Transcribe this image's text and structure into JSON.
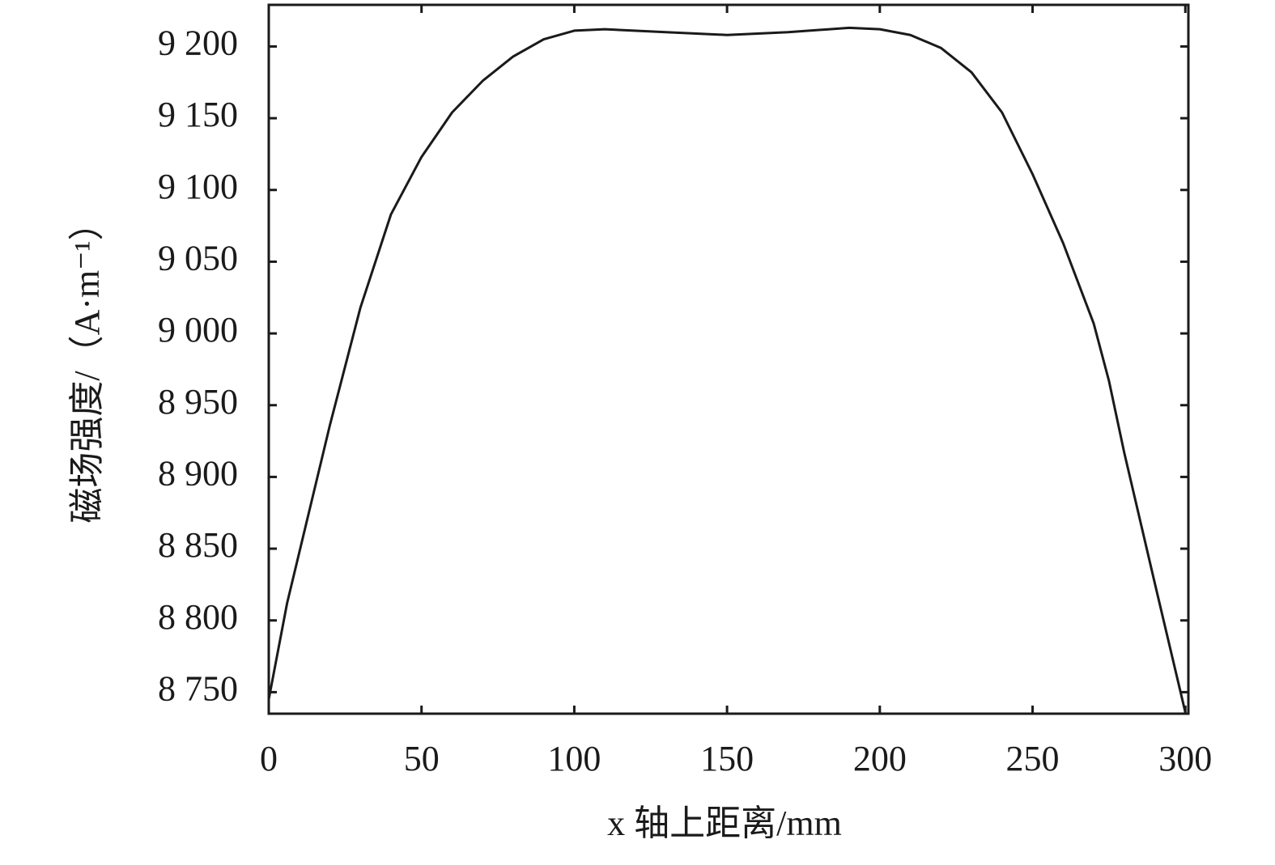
{
  "chart_data": {
    "type": "line",
    "x_label": "x 轴上距离/mm",
    "y_label": "磁场强度/（A·m⁻¹）",
    "x": [
      0,
      6,
      20,
      30,
      40,
      50,
      60,
      70,
      80,
      90,
      100,
      110,
      130,
      150,
      170,
      190,
      200,
      210,
      220,
      230,
      240,
      250,
      260,
      270,
      275,
      280,
      290,
      300
    ],
    "series": [
      {
        "color": "#1a1a1a",
        "values": [
          8745,
          8812,
          8936,
          9018,
          9083,
          9123,
          9154,
          9176,
          9193,
          9205,
          9211,
          9212,
          9210,
          9208,
          9210,
          9213,
          9212,
          9208,
          9199,
          9182,
          9154,
          9111,
          9063,
          9007,
          8967,
          8917,
          8826,
          8736
        ]
      }
    ],
    "xlim": [
      0,
      301
    ],
    "ylim": [
      8735,
      9229
    ],
    "xticks": [
      0,
      50,
      100,
      150,
      200,
      250,
      300
    ],
    "yticks": [
      {
        "value": 8750,
        "label": "8 750"
      },
      {
        "value": 8800,
        "label": "8 800"
      },
      {
        "value": 8850,
        "label": "8 850"
      },
      {
        "value": 8900,
        "label": "8 900"
      },
      {
        "value": 8950,
        "label": "8 950"
      },
      {
        "value": 9000,
        "label": "9 000"
      },
      {
        "value": 9050,
        "label": "9 050"
      },
      {
        "value": 9100,
        "label": "9 100"
      },
      {
        "value": 9150,
        "label": "9 150"
      },
      {
        "value": 9200,
        "label": "9 200"
      }
    ]
  }
}
